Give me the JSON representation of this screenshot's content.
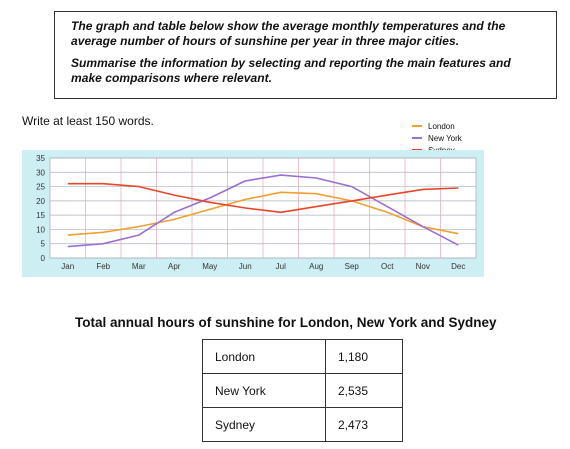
{
  "prompt": {
    "line1": "The graph and table below show the average monthly temperatures and the average number of hours of sunshine per year in three major cities.",
    "line2": "Summarise the information by selecting and reporting the main features and make comparisons where relevant."
  },
  "instruction": "Write at least 150 words.",
  "chart_data": {
    "type": "line",
    "categories": [
      "Jan",
      "Feb",
      "Mar",
      "Apr",
      "May",
      "Jun",
      "Jul",
      "Aug",
      "Sep",
      "Oct",
      "Nov",
      "Dec"
    ],
    "ylim": [
      0,
      35
    ],
    "yticks": [
      0,
      5,
      10,
      15,
      20,
      25,
      30,
      35
    ],
    "grid": true,
    "legend_position": "top-right",
    "series": [
      {
        "name": "London",
        "color": "#f0a030",
        "values": [
          8,
          9,
          11,
          13.5,
          17,
          20.5,
          23,
          22.5,
          20,
          16,
          11,
          8.5
        ]
      },
      {
        "name": "New York",
        "color": "#9b6fd0",
        "values": [
          4,
          5,
          8,
          16,
          21,
          27,
          29,
          28,
          25,
          18,
          11,
          4.5
        ]
      },
      {
        "name": "Sydney",
        "color": "#e8462a",
        "values": [
          26,
          26,
          25,
          22,
          19.5,
          17.5,
          16,
          18,
          20,
          22,
          24,
          24.5
        ]
      }
    ]
  },
  "table": {
    "title": "Total annual hours of sunshine for London, New York and Sydney",
    "rows": [
      {
        "city": "London",
        "hours": "1,180"
      },
      {
        "city": "New York",
        "hours": "2,535"
      },
      {
        "city": "Sydney",
        "hours": "2,473"
      }
    ]
  }
}
